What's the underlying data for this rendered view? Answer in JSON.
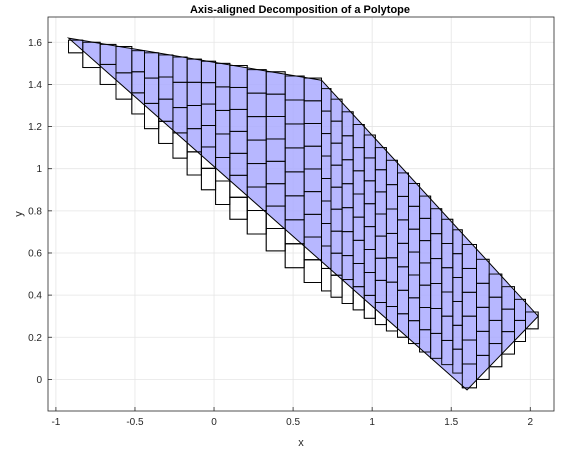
{
  "chart_data": {
    "type": "polygon-decomposition",
    "title": "Axis-aligned Decomposition of a Polytope",
    "xlabel": "x",
    "ylabel": "y",
    "xlim": [
      -1.05,
      2.15
    ],
    "ylim": [
      -0.15,
      1.72
    ],
    "xticks": [
      -1,
      -0.5,
      0,
      0.5,
      1,
      1.5,
      2
    ],
    "xtick_labels": [
      "-1",
      "-0.5",
      "0",
      "0.5",
      "1",
      "1.5",
      "2"
    ],
    "yticks": [
      0,
      0.2,
      0.4,
      0.6,
      0.8,
      1,
      1.2,
      1.4,
      1.6
    ],
    "ytick_labels": [
      "0",
      "0.2",
      "0.4",
      "0.6",
      "0.8",
      "1",
      "1.2",
      "1.4",
      "1.6"
    ],
    "grid": true,
    "colors": {
      "fill": "#aaaaff",
      "edge": "#000000",
      "grid": "#e5e5e5"
    },
    "polytope": {
      "vertices": [
        [
          -0.92,
          1.62
        ],
        [
          0.68,
          1.42
        ],
        [
          2.05,
          0.3
        ],
        [
          1.6,
          -0.05
        ]
      ]
    },
    "decomposition": {
      "columns": [
        {
          "x": [
            -0.92,
            -0.83
          ],
          "y": [
            1.55,
            1.61
          ]
        },
        {
          "x": [
            -0.83,
            -0.72
          ],
          "y": [
            1.48,
            1.6
          ]
        },
        {
          "x": [
            -0.72,
            -0.62
          ],
          "y": [
            1.4,
            1.59
          ]
        },
        {
          "x": [
            -0.62,
            -0.52
          ],
          "y": [
            1.33,
            1.58
          ]
        },
        {
          "x": [
            -0.52,
            -0.44
          ],
          "y": [
            1.26,
            1.56
          ]
        },
        {
          "x": [
            -0.44,
            -0.35
          ],
          "y": [
            1.19,
            1.55
          ]
        },
        {
          "x": [
            -0.35,
            -0.26
          ],
          "y": [
            1.12,
            1.54
          ]
        },
        {
          "x": [
            -0.26,
            -0.17
          ],
          "y": [
            1.05,
            1.53
          ]
        },
        {
          "x": [
            -0.17,
            -0.08
          ],
          "y": [
            0.97,
            1.52
          ]
        },
        {
          "x": [
            -0.08,
            0.01
          ],
          "y": [
            0.9,
            1.51
          ]
        },
        {
          "x": [
            0.01,
            0.1
          ],
          "y": [
            0.83,
            1.5
          ]
        },
        {
          "x": [
            0.1,
            0.21
          ],
          "y": [
            0.76,
            1.49
          ]
        },
        {
          "x": [
            0.21,
            0.33
          ],
          "y": [
            0.69,
            1.47
          ]
        },
        {
          "x": [
            0.33,
            0.45
          ],
          "y": [
            0.61,
            1.46
          ]
        },
        {
          "x": [
            0.45,
            0.57
          ],
          "y": [
            0.53,
            1.44
          ]
        },
        {
          "x": [
            0.57,
            0.68
          ],
          "y": [
            0.46,
            1.43
          ]
        },
        {
          "x": [
            0.68,
            0.74
          ],
          "y": [
            0.42,
            1.38
          ]
        },
        {
          "x": [
            0.74,
            0.81
          ],
          "y": [
            0.39,
            1.33
          ]
        },
        {
          "x": [
            0.81,
            0.88
          ],
          "y": [
            0.36,
            1.27
          ]
        },
        {
          "x": [
            0.88,
            0.95
          ],
          "y": [
            0.33,
            1.21
          ]
        },
        {
          "x": [
            0.95,
            1.02
          ],
          "y": [
            0.29,
            1.16
          ]
        },
        {
          "x": [
            1.02,
            1.09
          ],
          "y": [
            0.26,
            1.1
          ]
        },
        {
          "x": [
            1.09,
            1.16
          ],
          "y": [
            0.23,
            1.04
          ]
        },
        {
          "x": [
            1.16,
            1.23
          ],
          "y": [
            0.2,
            0.98
          ]
        },
        {
          "x": [
            1.23,
            1.3
          ],
          "y": [
            0.17,
            0.93
          ]
        },
        {
          "x": [
            1.3,
            1.37
          ],
          "y": [
            0.13,
            0.87
          ]
        },
        {
          "x": [
            1.37,
            1.44
          ],
          "y": [
            0.1,
            0.81
          ]
        },
        {
          "x": [
            1.44,
            1.51
          ],
          "y": [
            0.07,
            0.76
          ]
        },
        {
          "x": [
            1.51,
            1.57
          ],
          "y": [
            0.03,
            0.71
          ]
        },
        {
          "x": [
            1.57,
            1.66
          ],
          "y": [
            -0.04,
            0.64
          ]
        },
        {
          "x": [
            1.66,
            1.74
          ],
          "y": [
            0.0,
            0.57
          ]
        },
        {
          "x": [
            1.74,
            1.82
          ],
          "y": [
            0.06,
            0.5
          ]
        },
        {
          "x": [
            1.82,
            1.9
          ],
          "y": [
            0.12,
            0.44
          ]
        },
        {
          "x": [
            1.9,
            1.97
          ],
          "y": [
            0.18,
            0.38
          ]
        },
        {
          "x": [
            1.97,
            2.05
          ],
          "y": [
            0.24,
            0.32
          ]
        }
      ]
    }
  }
}
